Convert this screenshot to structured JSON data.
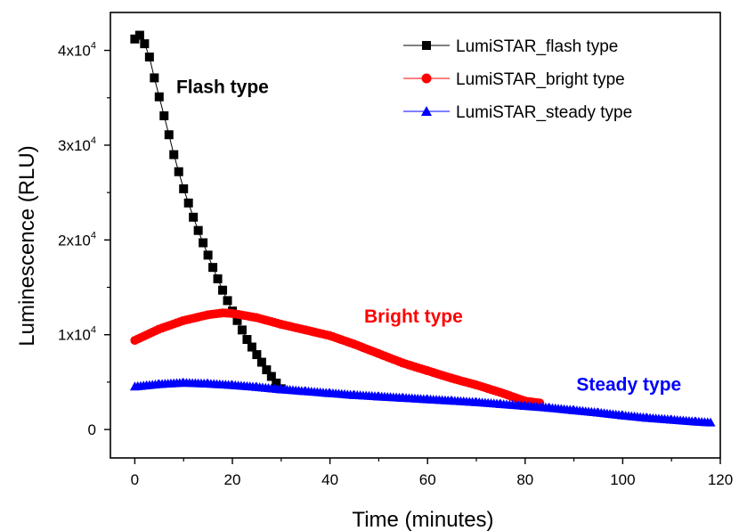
{
  "chart_data": {
    "type": "line",
    "title": "",
    "xlabel": "Time (minutes)",
    "ylabel": "Luminescence (RLU)",
    "xlim": [
      -5,
      120
    ],
    "ylim": [
      -3000,
      44000
    ],
    "x_ticks": [
      0,
      20,
      40,
      60,
      80,
      100,
      120
    ],
    "x_tick_labels": [
      "0",
      "20",
      "40",
      "60",
      "80",
      "100",
      "120"
    ],
    "y_ticks": [
      0,
      10000,
      20000,
      30000,
      40000
    ],
    "y_tick_labels": [
      {
        "base": "0",
        "exp": ""
      },
      {
        "base": "1x10",
        "exp": "4"
      },
      {
        "base": "2x10",
        "exp": "4"
      },
      {
        "base": "3x10",
        "exp": "4"
      },
      {
        "base": "4x10",
        "exp": "4"
      }
    ],
    "grid": false,
    "legend_position": "top-right",
    "series": [
      {
        "name": "LumiSTAR_flash type",
        "color": "#000000",
        "marker": "square",
        "x": [
          0,
          1,
          2,
          3,
          4,
          5,
          6,
          7,
          8,
          9,
          10,
          11,
          12,
          13,
          14,
          15,
          16,
          17,
          18,
          19,
          20,
          21,
          22,
          23,
          24,
          25,
          26,
          27,
          28,
          29,
          30
        ],
        "y": [
          41200,
          41600,
          40700,
          39300,
          37100,
          35100,
          33100,
          31100,
          29000,
          27200,
          25400,
          23900,
          22400,
          21000,
          19700,
          18400,
          17100,
          15900,
          14700,
          13600,
          12500,
          11500,
          10500,
          9500,
          8700,
          7900,
          7100,
          6300,
          5600,
          4900,
          4300
        ]
      },
      {
        "name": "LumiSTAR_bright type",
        "color": "#ff0000",
        "marker": "circle",
        "x": [
          0,
          5,
          10,
          15,
          18,
          20,
          25,
          30,
          35,
          40,
          45,
          50,
          55,
          60,
          65,
          70,
          75,
          80,
          83
        ],
        "y": [
          9400,
          10600,
          11500,
          12100,
          12300,
          12250,
          11800,
          11100,
          10500,
          9900,
          9000,
          8000,
          7000,
          6200,
          5400,
          4700,
          3900,
          3000,
          2800
        ]
      },
      {
        "name": "LumiSTAR_steady type",
        "color": "#0000ff",
        "marker": "triangle",
        "x": [
          0,
          5,
          10,
          15,
          20,
          25,
          30,
          35,
          40,
          45,
          50,
          55,
          60,
          65,
          70,
          75,
          80,
          85,
          90,
          95,
          100,
          105,
          110,
          115,
          118
        ],
        "y": [
          4500,
          4750,
          4900,
          4800,
          4650,
          4450,
          4200,
          4000,
          3800,
          3600,
          3450,
          3300,
          3150,
          3000,
          2850,
          2650,
          2450,
          2250,
          2000,
          1750,
          1450,
          1200,
          1000,
          800,
          700
        ]
      }
    ],
    "annotations": [
      {
        "text": "Flash type",
        "color": "#000000",
        "x": 8.5,
        "y": 35500
      },
      {
        "text": "Bright type",
        "color": "#ff0000",
        "x": 47,
        "y": 11300
      },
      {
        "text": "Steady type",
        "color": "#0000ff",
        "x": 90.5,
        "y": 4100
      }
    ]
  }
}
